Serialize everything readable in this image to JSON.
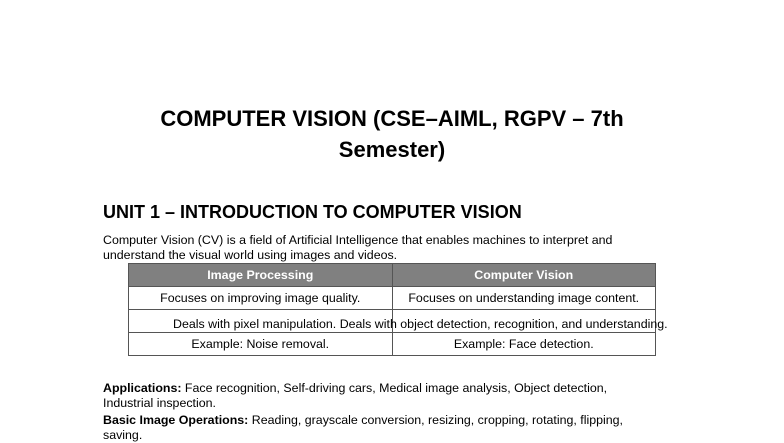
{
  "title": {
    "line1": "COMPUTER VISION (CSE–AIML, RGPV – 7th",
    "line2": "Semester)"
  },
  "unit_heading": "UNIT 1 – INTRODUCTION TO COMPUTER VISION",
  "intro": {
    "line1": "Computer Vision (CV) is a field of Artificial Intelligence that enables machines to interpret and",
    "line2": "understand the visual world using images and videos."
  },
  "table": {
    "headers": [
      "Image Processing",
      "Computer Vision"
    ],
    "rows": [
      [
        "Focuses on improving image quality.",
        "Focuses on understanding image content."
      ],
      [
        "Deals with pixel manipulation.",
        "Deals with object detection, recognition, and understanding."
      ],
      [
        "Example: Noise removal.",
        "Example: Face detection."
      ]
    ],
    "header_color": "#808080"
  },
  "applications": {
    "label": "Applications:",
    "line1": " Face recognition, Self-driving cars, Medical image analysis, Object detection,",
    "line2": "Industrial inspection."
  },
  "operations": {
    "label": "Basic Image Operations:",
    "line1": " Reading, grayscale conversion, resizing, cropping, rotating, flipping,",
    "line2": "saving."
  }
}
